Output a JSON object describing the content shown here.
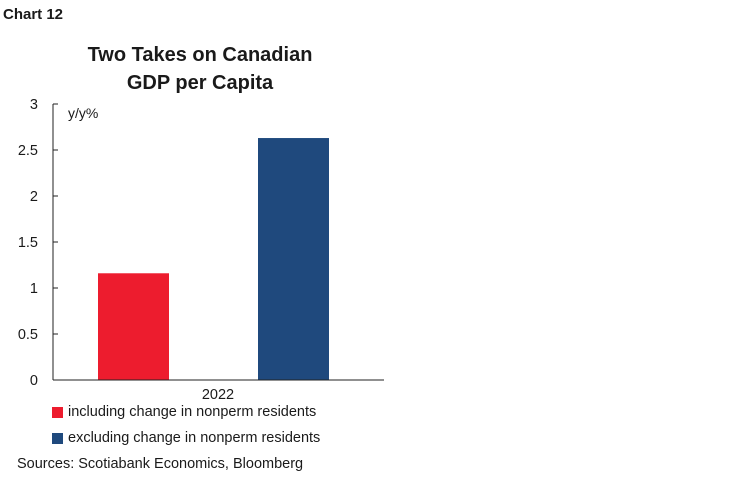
{
  "chart_label": "Chart 12",
  "chart_data": {
    "type": "bar",
    "title_lines": [
      "Two Takes on Canadian",
      "GDP per Capita"
    ],
    "categories": [
      "2022"
    ],
    "ylabel": "y/y%",
    "ylim": [
      0,
      3
    ],
    "yticks": [
      "0",
      "0.5",
      "1",
      "1.5",
      "2",
      "2.5",
      "3"
    ],
    "series": [
      {
        "name": "including change in nonperm residents",
        "values": [
          1.16
        ],
        "color": "#ed1c2e"
      },
      {
        "name": "excluding change in nonperm residents",
        "values": [
          2.63
        ],
        "color": "#1f497d"
      }
    ],
    "grid": false,
    "legend_position": "bottom"
  },
  "source": "Sources: Scotiabank Economics, Bloomberg"
}
